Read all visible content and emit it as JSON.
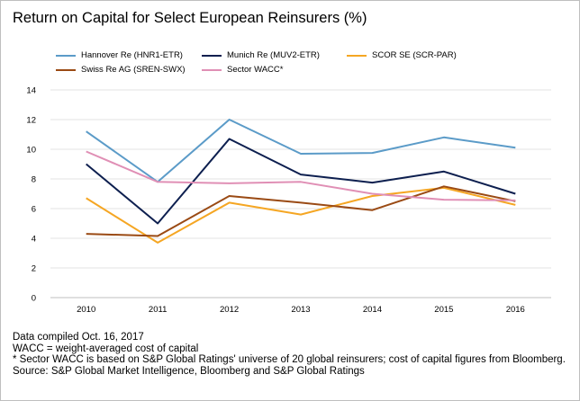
{
  "chart_data": {
    "type": "line",
    "title": "Return on Capital for Select European Reinsurers (%)",
    "xlabel": "",
    "ylabel": "",
    "categories": [
      "2010",
      "2011",
      "2012",
      "2013",
      "2014",
      "2015",
      "2016"
    ],
    "ylim": [
      0,
      14
    ],
    "yticks": [
      "0",
      "2",
      "4",
      "6",
      "8",
      "10",
      "12",
      "14"
    ],
    "grid": "horizontal",
    "legend_position": "top",
    "series": [
      {
        "name": "Hannover Re (HNR1-ETR)",
        "color": "#5b9bc8",
        "values": [
          11.2,
          7.8,
          12.0,
          9.7,
          9.75,
          10.8,
          10.1
        ]
      },
      {
        "name": "Munich Re (MUV2-ETR)",
        "color": "#0d1f4f",
        "values": [
          9.0,
          5.0,
          10.7,
          8.3,
          7.75,
          8.5,
          7.0
        ]
      },
      {
        "name": "SCOR SE (SCR-PAR)",
        "color": "#f5a623",
        "values": [
          6.7,
          3.7,
          6.4,
          5.6,
          6.85,
          7.4,
          6.25
        ]
      },
      {
        "name": "Swiss Re AG (SREN-SWX)",
        "color": "#9a4a14",
        "values": [
          4.3,
          4.15,
          6.85,
          6.4,
          5.9,
          7.5,
          6.5
        ]
      },
      {
        "name": "Sector WACC*",
        "color": "#e08fb5",
        "values": [
          9.85,
          7.8,
          7.7,
          7.8,
          7.0,
          6.6,
          6.55
        ]
      }
    ]
  },
  "notes": [
    "Data compiled Oct. 16, 2017",
    "WACC = weight-averaged cost of capital",
    "* Sector WACC is based on S&P Global Ratings' universe of 20 global reinsurers; cost of capital figures from Bloomberg.",
    "Source: S&P Global Market Intelligence, Bloomberg and S&P Global Ratings"
  ]
}
